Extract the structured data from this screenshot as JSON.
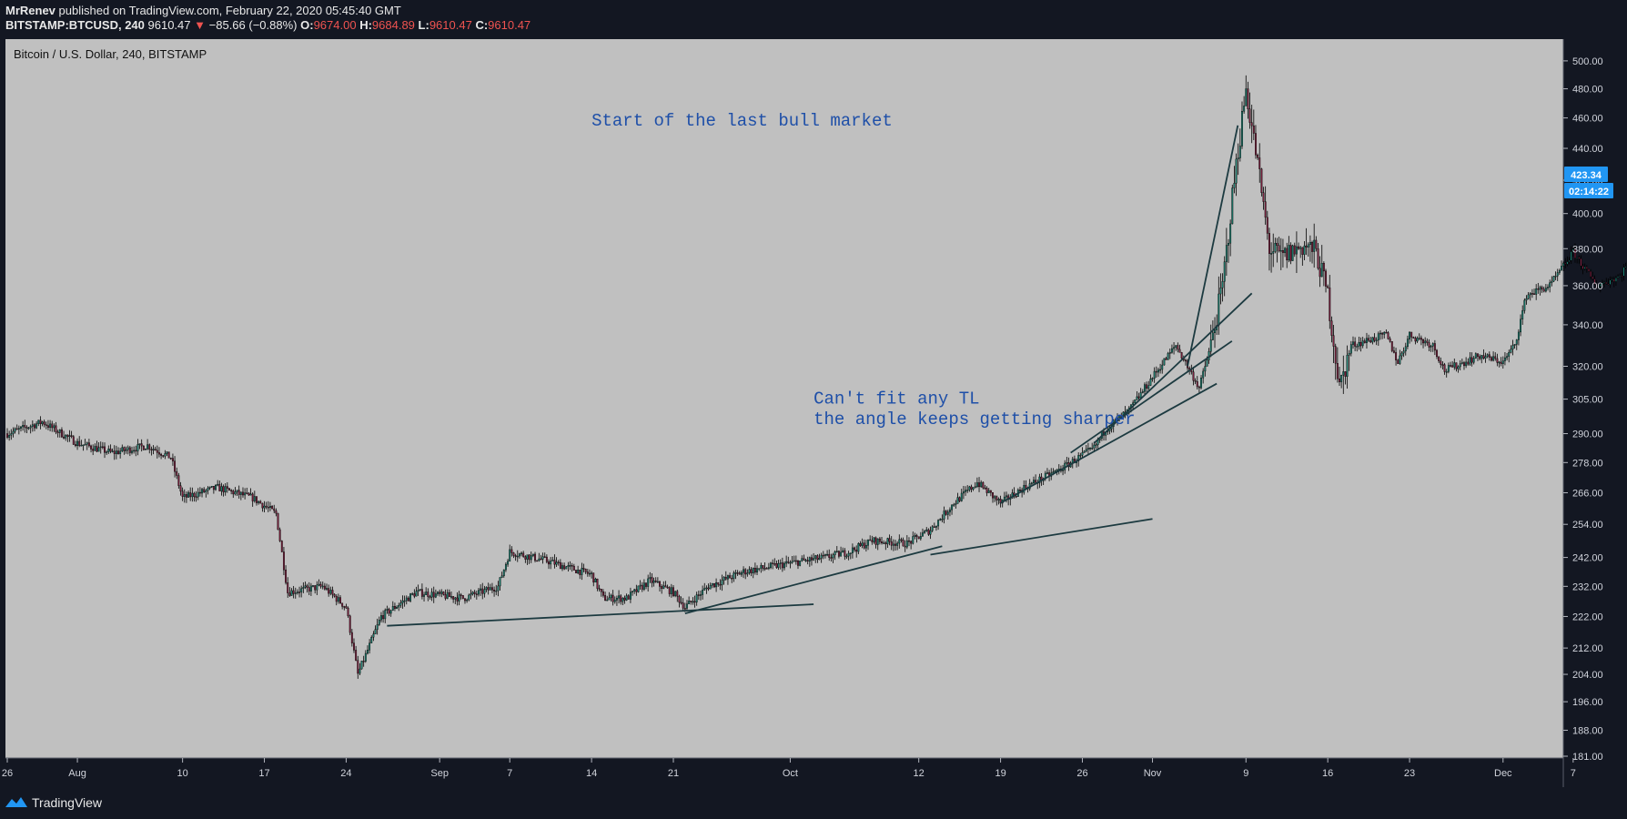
{
  "publish_line": {
    "author": "MrRenev",
    "text": "published on TradingView.com, February 22, 2020 05:45:40 GMT"
  },
  "ticker_line": {
    "symbol": "BITSTAMP:BTCUSD, 240",
    "price": "9610.47",
    "change_arrow": "▼",
    "change": "−85.66 (−0.88%)",
    "o_label": "O:",
    "o": "9674.00",
    "h_label": "H:",
    "h": "9684.89",
    "l_label": "L:",
    "l": "9610.47",
    "c_label": "C:",
    "c": "9610.47"
  },
  "footer": {
    "brand": "TradingView"
  },
  "colors": {
    "bg": "#131722",
    "pane": "#c0c0c0",
    "up": "#1a7d6e",
    "down": "#7a1f3d",
    "trend": "#1c3a40",
    "annotation": "#1e4fa8",
    "badge": "#2196f3",
    "text": "#e8e8e8"
  },
  "chart_data": {
    "type": "candlestick",
    "title": "Bitcoin / U.S. Dollar, 240, BITSTAMP",
    "xlabel": "",
    "ylabel": "",
    "y_scale": "log",
    "ylim": [
      181,
      510
    ],
    "x_domain_days": [
      -5,
      128
    ],
    "y_ticks": [
      "181.00",
      "188.00",
      "196.00",
      "204.00",
      "212.00",
      "222.00",
      "232.00",
      "242.00",
      "254.00",
      "266.00",
      "278.00",
      "290.00",
      "305.00",
      "320.00",
      "340.00",
      "360.00",
      "380.00",
      "400.00",
      "420.00",
      "440.00",
      "460.00",
      "480.00",
      "500.00"
    ],
    "x_ticks": [
      {
        "label": "26",
        "day": -5
      },
      {
        "label": "Aug",
        "day": 1
      },
      {
        "label": "10",
        "day": 10
      },
      {
        "label": "17",
        "day": 17
      },
      {
        "label": "24",
        "day": 24
      },
      {
        "label": "Sep",
        "day": 32
      },
      {
        "label": "7",
        "day": 38
      },
      {
        "label": "14",
        "day": 45
      },
      {
        "label": "21",
        "day": 52
      },
      {
        "label": "Oct",
        "day": 62
      },
      {
        "label": "12",
        "day": 73
      },
      {
        "label": "19",
        "day": 80
      },
      {
        "label": "26",
        "day": 87
      },
      {
        "label": "Nov",
        "day": 93
      },
      {
        "label": "9",
        "day": 101
      },
      {
        "label": "16",
        "day": 108
      },
      {
        "label": "23",
        "day": 115
      },
      {
        "label": "Dec",
        "day": 123
      },
      {
        "label": "7",
        "day": 129
      }
    ],
    "close_path": [
      [
        -5,
        290
      ],
      [
        -2,
        295
      ],
      [
        1,
        286
      ],
      [
        4,
        282
      ],
      [
        7,
        285
      ],
      [
        9,
        280
      ],
      [
        10,
        264
      ],
      [
        13,
        268
      ],
      [
        16,
        264
      ],
      [
        18,
        258
      ],
      [
        19,
        230
      ],
      [
        22,
        232
      ],
      [
        24,
        225
      ],
      [
        25,
        204
      ],
      [
        27,
        222
      ],
      [
        30,
        230
      ],
      [
        34,
        228
      ],
      [
        37,
        232
      ],
      [
        38,
        244
      ],
      [
        41,
        241
      ],
      [
        45,
        236
      ],
      [
        46,
        228
      ],
      [
        48,
        228
      ],
      [
        50,
        234
      ],
      [
        52,
        230
      ],
      [
        53,
        225
      ],
      [
        55,
        232
      ],
      [
        58,
        237
      ],
      [
        62,
        240
      ],
      [
        65,
        242
      ],
      [
        67,
        244
      ],
      [
        69,
        248
      ],
      [
        72,
        247
      ],
      [
        74,
        252
      ],
      [
        76,
        262
      ],
      [
        78,
        270
      ],
      [
        80,
        262
      ],
      [
        82,
        268
      ],
      [
        85,
        275
      ],
      [
        88,
        284
      ],
      [
        89,
        292
      ],
      [
        91,
        300
      ],
      [
        93,
        315
      ],
      [
        95,
        330
      ],
      [
        96,
        320
      ],
      [
        97,
        310
      ],
      [
        98,
        330
      ],
      [
        99,
        360
      ],
      [
        100,
        420
      ],
      [
        101,
        480
      ],
      [
        102,
        430
      ],
      [
        103,
        380
      ],
      [
        104,
        375
      ],
      [
        106,
        382
      ],
      [
        107,
        378
      ],
      [
        108,
        355
      ],
      [
        109,
        310
      ],
      [
        110,
        330
      ],
      [
        113,
        335
      ],
      [
        114,
        322
      ],
      [
        115,
        335
      ],
      [
        117,
        330
      ],
      [
        118,
        318
      ],
      [
        121,
        325
      ],
      [
        123,
        322
      ],
      [
        124,
        330
      ],
      [
        125,
        355
      ],
      [
        127,
        360
      ],
      [
        129,
        378
      ],
      [
        131,
        360
      ],
      [
        133,
        365
      ],
      [
        135,
        388
      ],
      [
        137,
        395
      ],
      [
        138,
        410
      ],
      [
        139,
        423.34
      ]
    ],
    "last_price": "423.34",
    "countdown": "02:14:22",
    "trendlines": [
      [
        [
          27.5,
          219
        ],
        [
          64,
          226
        ]
      ],
      [
        [
          53,
          223
        ],
        [
          75,
          246
        ]
      ],
      [
        [
          74,
          243
        ],
        [
          93,
          256
        ]
      ],
      [
        [
          80,
          262
        ],
        [
          98.5,
          312
        ]
      ],
      [
        [
          86,
          282
        ],
        [
          99.8,
          332
        ]
      ],
      [
        [
          88,
          286
        ],
        [
          101.5,
          356
        ]
      ],
      [
        [
          96,
          320
        ],
        [
          100.3,
          455
        ]
      ]
    ],
    "annotations": [
      {
        "text": "Start of the last bull market",
        "day": 45,
        "price": 455
      },
      {
        "text": "Can't fit any TL",
        "day": 64,
        "price": 303
      },
      {
        "text": "the angle keeps getting sharper",
        "day": 64,
        "price": 294
      }
    ]
  }
}
